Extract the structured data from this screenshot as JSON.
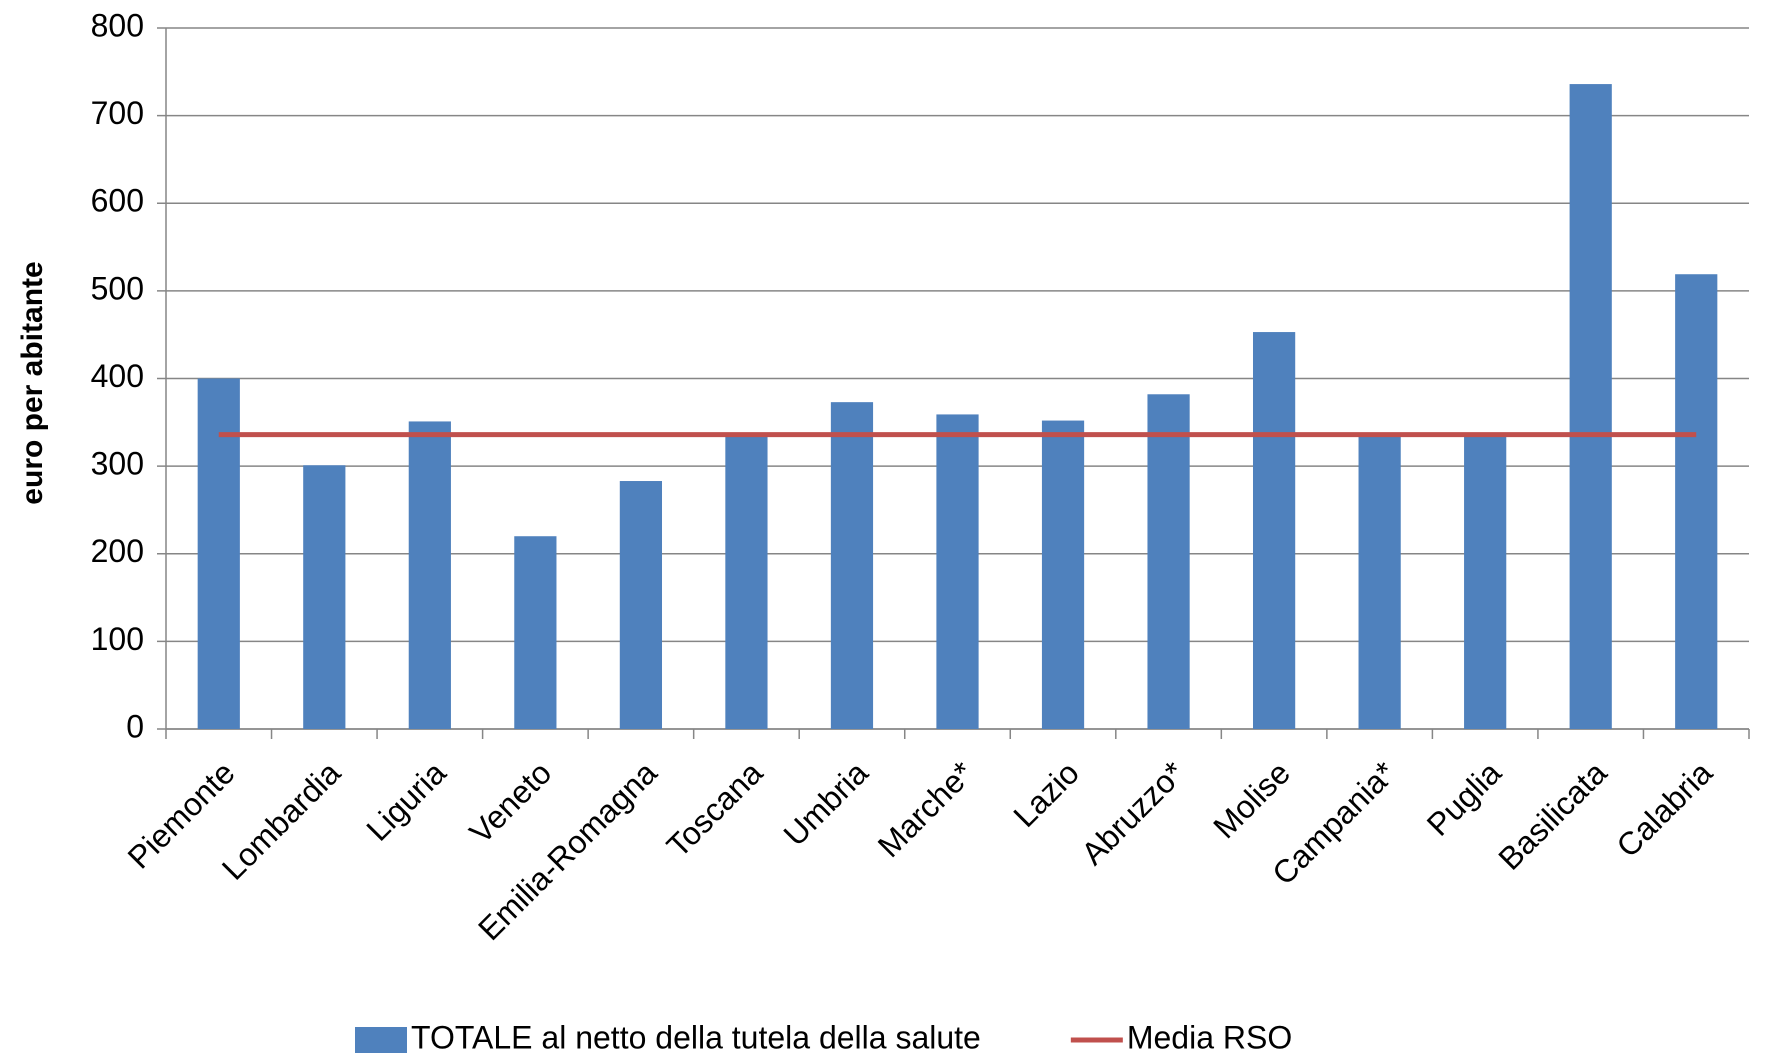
{
  "chart_data": {
    "type": "bar",
    "y_label": "euro per abitante",
    "categories": [
      "Piemonte",
      "Lombardia",
      "Liguria",
      "Veneto",
      "Emilia-Romagna",
      "Toscana",
      "Umbria",
      "Marche*",
      "Lazio",
      "Abruzzo*",
      "Molise",
      "Campania*",
      "Puglia",
      "Basilicata",
      "Calabria"
    ],
    "series": [
      {
        "name": "TOTALE al netto della tutela della salute",
        "color": "#4f81bd",
        "type": "bar",
        "values": [
          400,
          301,
          351,
          220,
          283,
          337,
          373,
          359,
          352,
          382,
          453,
          334,
          336,
          736,
          519
        ]
      },
      {
        "name": "Media RSO",
        "color": "#c0504d",
        "type": "line",
        "values": [
          336,
          336,
          336,
          336,
          336,
          336,
          336,
          336,
          336,
          336,
          336,
          336,
          336,
          336,
          336
        ]
      }
    ],
    "ylim": [
      0,
      800
    ],
    "yticks": [
      0,
      100,
      200,
      300,
      400,
      500,
      600,
      700,
      800
    ],
    "grid": true,
    "legend": "bottom"
  }
}
